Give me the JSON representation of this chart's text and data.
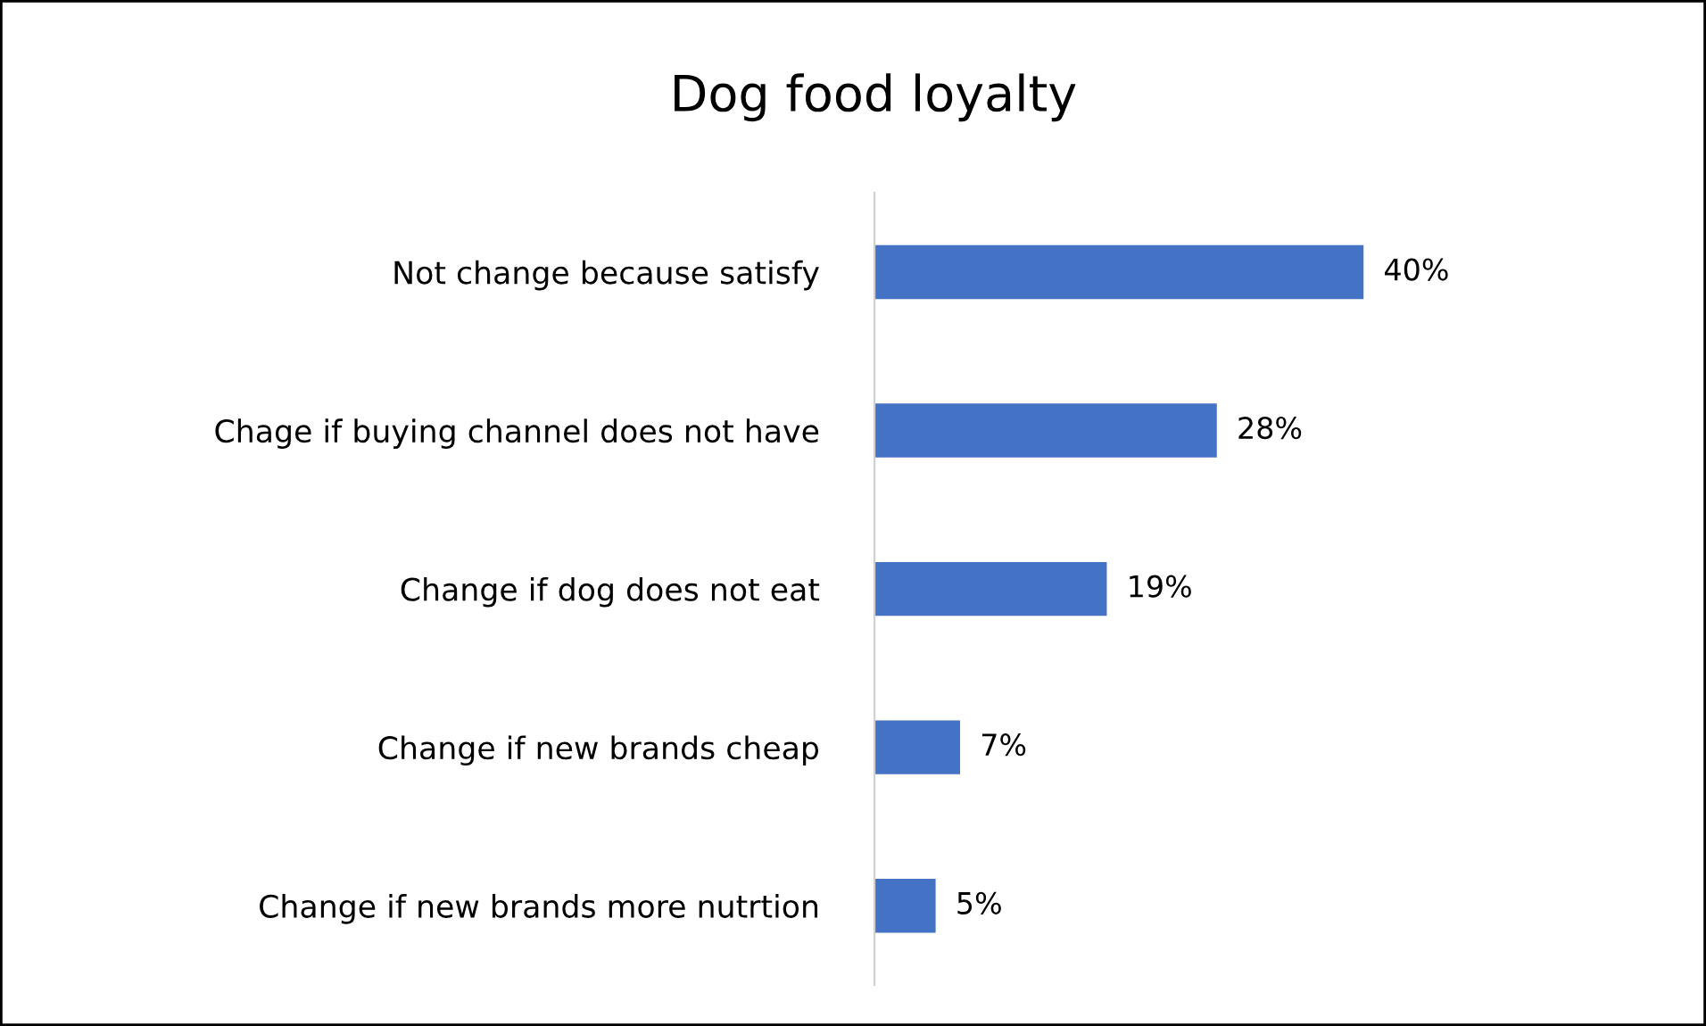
{
  "chart_data": {
    "type": "bar",
    "orientation": "horizontal",
    "title": "Dog food loyalty",
    "categories": [
      "Not change because satisfy",
      "Chage if buying channel does not have",
      "Change if dog does not eat",
      "Change if new brands cheap",
      "Change if new brands more nutrtion"
    ],
    "values": [
      40,
      28,
      19,
      7,
      5
    ],
    "value_labels": [
      "40%",
      "28%",
      "19%",
      "7%",
      "5%"
    ],
    "color": "#4472c4",
    "grid": false,
    "legend": false
  }
}
